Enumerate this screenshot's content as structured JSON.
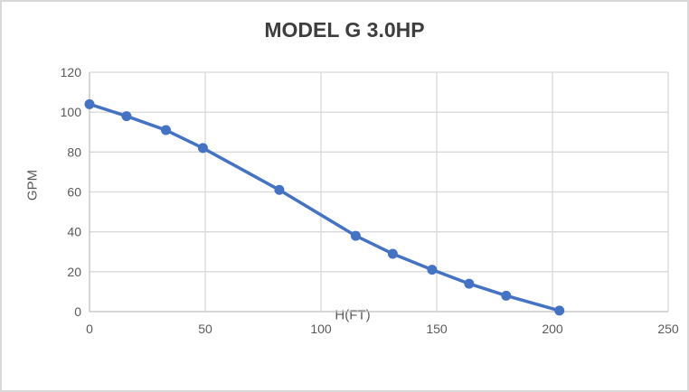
{
  "chart_data": {
    "type": "line",
    "title": "MODEL G 3.0HP",
    "xlabel": "H(FT)",
    "ylabel": "GPM",
    "x": [
      0,
      16,
      33,
      49,
      82,
      115,
      131,
      148,
      164,
      180,
      203
    ],
    "y": [
      104,
      98,
      91,
      82,
      61,
      38,
      29,
      21,
      14,
      8,
      0.5
    ],
    "xlim": [
      0,
      250
    ],
    "ylim": [
      0,
      120
    ],
    "x_ticks": [
      0,
      50,
      100,
      150,
      200,
      250
    ],
    "y_ticks": [
      0,
      20,
      40,
      60,
      80,
      100,
      120
    ],
    "grid": true,
    "legend": false,
    "marker": "circle",
    "line_width": 3.5,
    "marker_radius": 5.5,
    "colors": {
      "line": "#4472C4",
      "gridline": "#D9D9D9",
      "axis_line": "#BFBFBF",
      "tick_label": "#595959",
      "title": "#3E3E3E",
      "background": "#FFFFFF",
      "border": "#D9D9D9"
    }
  }
}
